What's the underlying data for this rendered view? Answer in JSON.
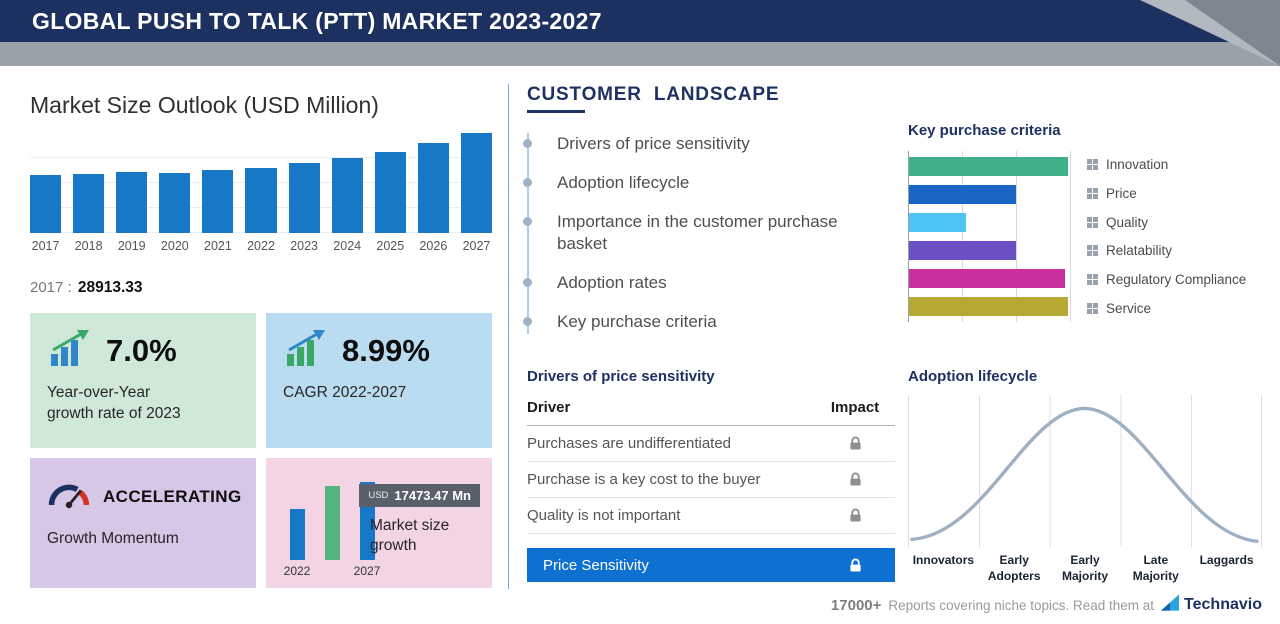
{
  "header": {
    "title": "GLOBAL PUSH TO TALK (PTT) MARKET 2023-2027"
  },
  "market_outlook": {
    "title": "Market Size Outlook (USD Million)",
    "callout_year": "2017",
    "callout_value": "28913.33",
    "cards": {
      "yoy": {
        "value": "7.0%",
        "line1": "Year-over-Year",
        "line2": "growth rate of 2023"
      },
      "cagr": {
        "value": "8.99%",
        "label": "CAGR 2022-2027"
      },
      "momentum": {
        "title": "ACCELERATING",
        "subtitle": "Growth Momentum"
      },
      "size_growth": {
        "badge_currency": "USD",
        "badge_value": "17473.47 Mn",
        "label": "Market size growth"
      }
    }
  },
  "customer_landscape": {
    "title": "CUSTOMER LANDSCAPE",
    "items": [
      "Drivers of price sensitivity",
      "Adoption lifecycle",
      "Importance in the customer purchase basket",
      "Adoption rates",
      "Key purchase criteria"
    ],
    "key_purchase": {
      "title": "Key purchase criteria"
    },
    "price_sensitivity": {
      "title": "Drivers of price sensitivity",
      "col_driver": "Driver",
      "col_impact": "Impact",
      "rows": [
        "Purchases are undifferentiated",
        "Purchase is a key cost to the buyer",
        "Quality is not important"
      ],
      "highlight": "Price Sensitivity"
    },
    "adoption": {
      "title": "Adoption lifecycle",
      "stages": [
        "Innovators",
        "Early Adopters",
        "Early Majority",
        "Late Majority",
        "Laggards"
      ]
    }
  },
  "footer": {
    "count": "17000+",
    "text": "Reports covering niche topics. Read them at",
    "brand": "Technavio"
  },
  "colors": {
    "header_navy": "#1d3160",
    "chart_bar_blue": "#1878c8",
    "card_green_bg": "#cfe8d8",
    "card_blue_bg": "#b9dcf0",
    "card_purple_bg": "#d7c7e7",
    "card_pink_bg": "#f3d4e5",
    "price_sensitivity_bar": "#0e70d1",
    "growth_green": "#54b47e"
  },
  "chart_data": [
    {
      "id": "market_size_outlook",
      "type": "bar",
      "title": "Market Size Outlook (USD Million)",
      "categories": [
        "2017",
        "2018",
        "2019",
        "2020",
        "2021",
        "2022",
        "2023",
        "2024",
        "2025",
        "2026",
        "2027"
      ],
      "values": [
        28913.33,
        29700,
        30450,
        30150,
        31350,
        32490,
        34760,
        37350,
        40650,
        44900,
        49963
      ],
      "ylabel": "USD Million",
      "bar_color": "#1878c8",
      "labeled_points": {
        "2017": 28913.33
      },
      "note": "only 2017 labeled on screen; remaining values estimated from bar heights"
    },
    {
      "id": "key_purchase_criteria",
      "type": "bar",
      "orientation": "horizontal",
      "title": "Key purchase criteria",
      "categories": [
        "Innovation",
        "Price",
        "Quality",
        "Relatability",
        "Regulatory Compliance",
        "Service"
      ],
      "values": [
        98,
        66,
        35,
        66,
        96,
        98
      ],
      "value_unit": "percent of axis width, estimated",
      "colors": [
        "#3fb08b",
        "#1b66c4",
        "#4ec4f4",
        "#6a50c4",
        "#cb2f9d",
        "#b5a934"
      ],
      "legend_position": "right",
      "grid": "vertical gridlines"
    },
    {
      "id": "adoption_lifecycle",
      "type": "area",
      "title": "Adoption lifecycle",
      "categories": [
        "Innovators",
        "Early Adopters",
        "Early Majority",
        "Late Majority",
        "Laggards"
      ],
      "shape": "bell curve peaking near Early Majority",
      "grid": "vertical segment boundaries"
    },
    {
      "id": "market_size_growth",
      "type": "bar",
      "categories": [
        "2022",
        "2027"
      ],
      "values": [
        32490,
        49963
      ],
      "growth_label": "USD 17473.47 Mn"
    }
  ]
}
